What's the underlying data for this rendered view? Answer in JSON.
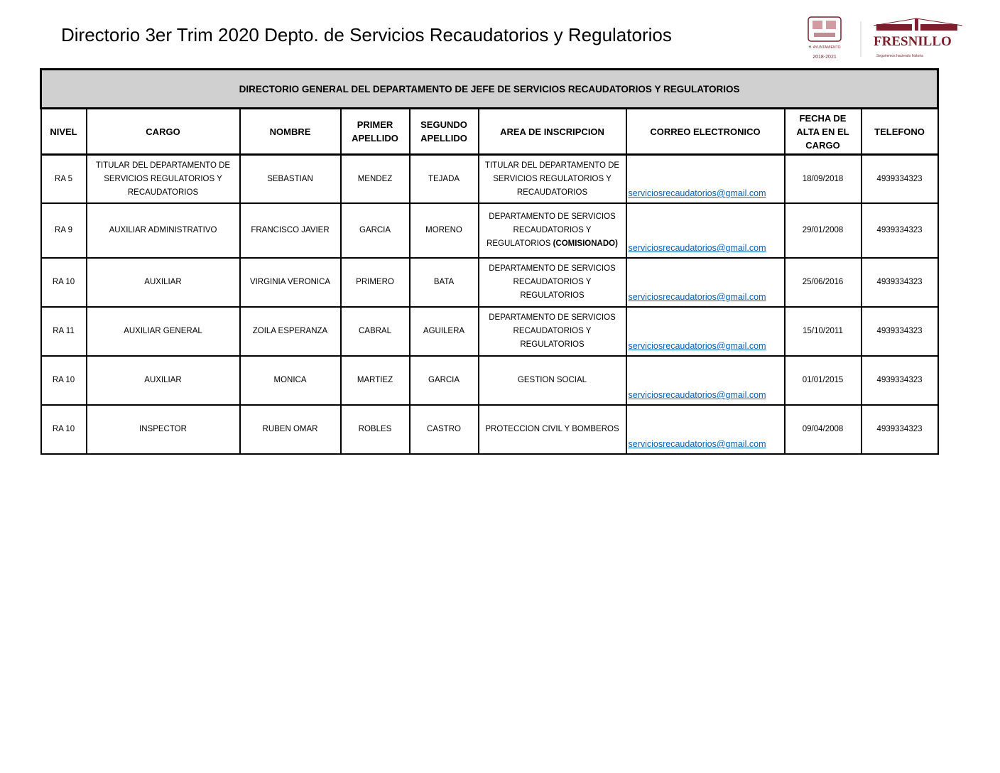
{
  "title": "Directorio 3er Trim 2020 Depto. de Servicios Recaudatorios y Regulatorios",
  "logos": {
    "left": "H. AYUNTAMIENTO 2018-2021",
    "right": "FRESNILLO",
    "right_tagline": "Seguiremos haciendo historia",
    "brand_color": "#7a1f2b"
  },
  "table": {
    "caption": "DIRECTORIO GENERAL DEL DEPARTAMENTO DE JEFE DE SERVICIOS RECAUDATORIOS Y REGULATORIOS",
    "headers": [
      "NIVEL",
      "CARGO",
      "NOMBRE",
      "PRIMER APELLIDO",
      "SEGUNDO APELLIDO",
      "AREA DE INSCRIPCION",
      "CORREO ELECTRONICO",
      "FECHA DE ALTA  EN EL CARGO",
      "TELEFONO"
    ],
    "rows": [
      {
        "nivel": "RA 5",
        "cargo": "TITULAR DEL DEPARTAMENTO DE SERVICIOS REGULATORIOS Y RECAUDATORIOS",
        "nombre": "SEBASTIAN",
        "primer": "MENDEZ",
        "segundo": "TEJADA",
        "area": "TITULAR DEL DEPARTAMENTO DE SERVICIOS REGULATORIOS Y RECAUDATORIOS",
        "area_bold": "",
        "correo": "serviciosrecaudatorios@gmail.com",
        "fecha": "18/09/2018",
        "tel": "4939334323"
      },
      {
        "nivel": "RA 9",
        "cargo": "AUXILIAR ADMINISTRATIVO",
        "nombre": "FRANCISCO JAVIER",
        "primer": "GARCIA",
        "segundo": "MORENO",
        "area": "DEPARTAMENTO DE SERVICIOS RECAUDATORIOS Y REGULATORIOS ",
        "area_bold": "(COMISIONADO)",
        "correo": "serviciosrecaudatorios@gmail.com",
        "fecha": "29/01/2008",
        "tel": "4939334323"
      },
      {
        "nivel": "RA 10",
        "cargo": "AUXILIAR",
        "nombre": "VIRGINIA VERONICA",
        "primer": "PRIMERO",
        "segundo": "BATA",
        "area": "DEPARTAMENTO DE SERVICIOS RECAUDATORIOS Y REGULATORIOS",
        "area_bold": "",
        "correo": "serviciosrecaudatorios@gmail.com",
        "fecha": "25/06/2016",
        "tel": "4939334323"
      },
      {
        "nivel": "RA 11",
        "cargo": "AUXILIAR GENERAL",
        "nombre": "ZOILA ESPERANZA",
        "primer": "CABRAL",
        "segundo": "AGUILERA",
        "area": "DEPARTAMENTO DE SERVICIOS RECAUDATORIOS Y REGULATORIOS",
        "area_bold": "",
        "correo": "serviciosrecaudatorios@gmail.com",
        "fecha": "15/10/2011",
        "tel": "4939334323"
      },
      {
        "nivel": "RA 10",
        "cargo": "AUXILIAR",
        "nombre": "MONICA",
        "primer": "MARTIEZ",
        "segundo": "GARCIA",
        "area": "GESTION SOCIAL",
        "area_bold": "",
        "correo": "serviciosrecaudatorios@gmail.com",
        "fecha": "01/01/2015",
        "tel": "4939334323"
      },
      {
        "nivel": "RA 10",
        "cargo": "INSPECTOR",
        "nombre": "RUBEN OMAR",
        "primer": "ROBLES",
        "segundo": "CASTRO",
        "area": "PROTECCION CIVIL Y BOMBEROS",
        "area_bold": "",
        "correo": "serviciosrecaudatorios@gmail.com",
        "fecha": "09/04/2008",
        "tel": "4939334323"
      }
    ]
  }
}
